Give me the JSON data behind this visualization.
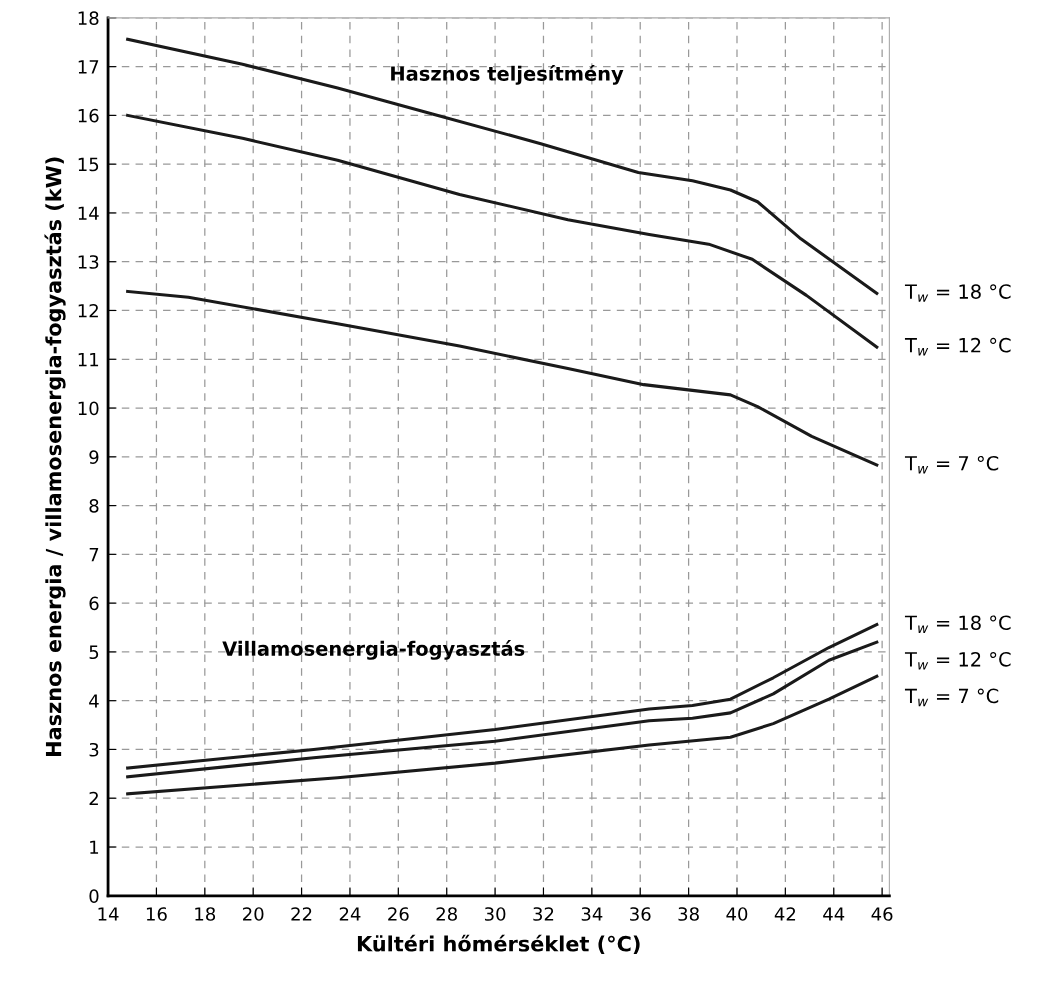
{
  "chart_data": {
    "type": "line",
    "xlabel": "Kültéri hőmérséklet (°C)",
    "ylabel": "Hasznos energia / villamosenergia-fogyasztás (kW)",
    "xlim": [
      14,
      46.3
    ],
    "ylim": [
      0,
      18
    ],
    "xticks": [
      14,
      16,
      18,
      20,
      22,
      24,
      26,
      28,
      30,
      32,
      34,
      36,
      38,
      40,
      42,
      44,
      46
    ],
    "yticks": [
      0,
      1,
      2,
      3,
      4,
      5,
      6,
      7,
      8,
      9,
      10,
      11,
      12,
      13,
      14,
      15,
      16,
      17,
      18
    ],
    "grid": true,
    "line_style": "solid",
    "marker": "none",
    "annotations": [
      "Hasznos teljesítmény",
      "Villamosenergia-fogyasztás"
    ],
    "series": [
      {
        "name": "T$_{w}$ = 18 °C",
        "color": "#1a1a1a",
        "x": [
          14.81,
          19.56,
          23.49,
          27.41,
          31.89,
          35.92,
          38.16,
          39.73,
          40.85,
          42.64,
          45.78
        ],
        "values": [
          17.56,
          17.05,
          16.56,
          16.03,
          15.42,
          14.83,
          14.66,
          14.47,
          14.23,
          13.47,
          12.35
        ]
      },
      {
        "name": "T$_{w}$ = 12 °C",
        "color": "#1a1a1a",
        "x": [
          14.81,
          19.56,
          23.49,
          28.53,
          33.01,
          36.37,
          38.83,
          40.63,
          42.87,
          45.78
        ],
        "values": [
          16.0,
          15.53,
          15.08,
          14.38,
          13.86,
          13.56,
          13.36,
          13.05,
          12.31,
          11.25
        ]
      },
      {
        "name": "T$_{w}$ = 7 °C",
        "color": "#1a1a1a",
        "x": [
          14.81,
          17.32,
          23.49,
          28.53,
          33.01,
          36.15,
          39.73,
          40.85,
          43.09,
          45.78
        ],
        "values": [
          12.39,
          12.27,
          11.73,
          11.27,
          10.81,
          10.48,
          10.27,
          10.03,
          9.42,
          8.83
        ]
      },
      {
        "name": "T$_{w}$ = 18 °C",
        "color": "#1a1a1a",
        "x": [
          14.81,
          22.5,
          30.0,
          36.37,
          38.16,
          39.73,
          41.5,
          43.8,
          45.78
        ],
        "values": [
          2.62,
          3.0,
          3.41,
          3.83,
          3.9,
          4.03,
          4.47,
          5.09,
          5.56
        ]
      },
      {
        "name": "T$_{w}$ = 12 °C",
        "color": "#1a1a1a",
        "x": [
          14.81,
          22.5,
          30.0,
          36.37,
          38.16,
          39.73,
          41.5,
          43.8,
          45.78
        ],
        "values": [
          2.44,
          2.83,
          3.17,
          3.59,
          3.64,
          3.75,
          4.14,
          4.83,
          5.2
        ]
      },
      {
        "name": "T$_{w}$ = 7 °C",
        "color": "#1a1a1a",
        "x": [
          14.81,
          23.49,
          30.0,
          36.37,
          39.73,
          41.5,
          43.8,
          45.78
        ],
        "values": [
          2.09,
          2.42,
          2.72,
          3.09,
          3.25,
          3.53,
          4.03,
          4.5
        ]
      }
    ]
  }
}
